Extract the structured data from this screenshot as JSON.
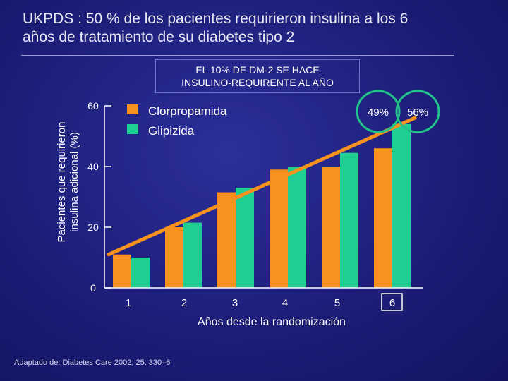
{
  "slide": {
    "title_line1": "UKPDS : 50 % de los pacientes requirieron insulina a los 6",
    "title_line2": "años de tratamiento de su diabetes tipo 2",
    "callout_line1": "EL 10% DE DM-2 SE HACE",
    "callout_line2": "INSULINO-REQUIRENTE AL AÑO",
    "source": "Adaptado de: Diabetes Care 2002; 25: 330–6"
  },
  "colors": {
    "clorpropamida": "#f7921e",
    "glipizida": "#1fcf92",
    "trend": "#f7921e",
    "circle": "#22c28a",
    "axis": "#ffffff"
  },
  "chart_data": {
    "type": "bar",
    "title": "",
    "xlabel": "Años desde la randomización",
    "ylabel_line1": "Pacientes que requirieron",
    "ylabel_line2": "insulina adicional (%)",
    "categories": [
      "1",
      "2",
      "3",
      "4",
      "5",
      "6"
    ],
    "ylim": [
      0,
      60
    ],
    "yticks": [
      "0",
      "20",
      "40",
      "60"
    ],
    "series": [
      {
        "name": "Clorpropamida",
        "values": [
          11,
          20,
          31.5,
          39,
          40,
          46
        ]
      },
      {
        "name": "Glipizida",
        "values": [
          10,
          21.5,
          33,
          40,
          44.5,
          54
        ]
      }
    ],
    "trend_line": {
      "from": [
        1,
        11
      ],
      "to": [
        6,
        56
      ]
    },
    "annotations": [
      "49%",
      "56%"
    ],
    "highlighted_category": "6",
    "legend_position": "top-left"
  }
}
